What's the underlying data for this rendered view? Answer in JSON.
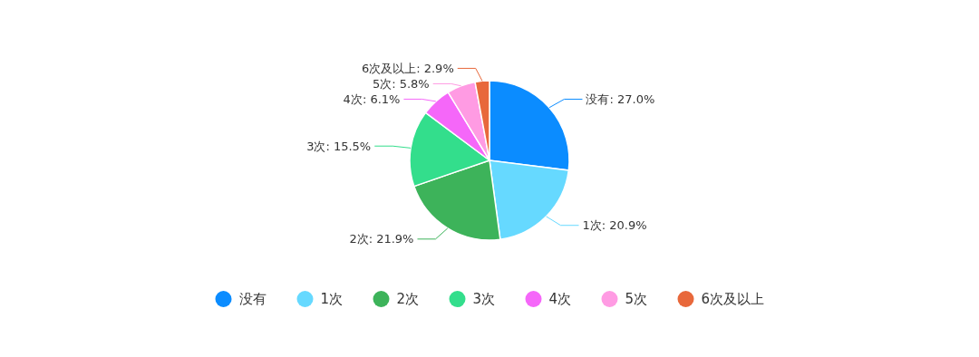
{
  "chart_data": {
    "type": "pie",
    "categories": [
      "没有",
      "1次",
      "2次",
      "3次",
      "4次",
      "5次",
      "6次及以上"
    ],
    "values": [
      27.0,
      20.9,
      21.9,
      15.5,
      6.1,
      5.8,
      2.9
    ],
    "value_labels": [
      "没有: 27.0%",
      "1次: 20.9%",
      "2次: 21.9%",
      "3次: 15.5%",
      "4次: 6.1%",
      "5次: 5.8%",
      "6次及以上: 2.9%"
    ],
    "colors": [
      "#0b8cff",
      "#66d9ff",
      "#3db35a",
      "#33de8c",
      "#f567f9",
      "#ff9be3",
      "#e8683b"
    ],
    "legend": "bottom"
  }
}
